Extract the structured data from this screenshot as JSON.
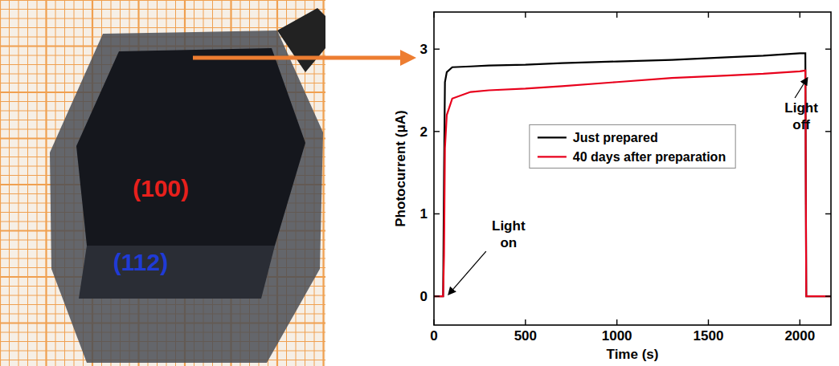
{
  "chart_data": {
    "type": "line",
    "x_label": "Time (s)",
    "y_label": "Photocurrent (μA)",
    "x": [
      0,
      45,
      50,
      55,
      60,
      70,
      100,
      200,
      300,
      500,
      700,
      1000,
      1300,
      1600,
      1800,
      2000,
      2030,
      2035,
      2100,
      2170
    ],
    "series": [
      {
        "name": "Just prepared",
        "color": "#000000",
        "values": [
          0,
          0,
          0,
          1.5,
          2.6,
          2.72,
          2.78,
          2.79,
          2.8,
          2.81,
          2.83,
          2.85,
          2.87,
          2.9,
          2.92,
          2.95,
          2.95,
          0,
          0,
          0
        ]
      },
      {
        "name": "40 days after preparation",
        "color": "#e8001c",
        "values": [
          0,
          0,
          0,
          0.5,
          1.8,
          2.2,
          2.4,
          2.48,
          2.5,
          2.52,
          2.55,
          2.6,
          2.65,
          2.68,
          2.7,
          2.73,
          2.74,
          0,
          0,
          0
        ]
      }
    ],
    "xlim": [
      0,
      2170
    ],
    "xticks": [
      0,
      500,
      1000,
      1500,
      2000
    ],
    "ylim": [
      -0.35,
      3.45
    ],
    "yticks": [
      0,
      1,
      2,
      3
    ],
    "legend": "center",
    "annotations": [
      {
        "text": "Light on",
        "x": 65,
        "y": 0
      },
      {
        "text": "Light off",
        "x": 2030,
        "y": 2.7
      }
    ]
  },
  "photo": {
    "face_labels": [
      {
        "text": "(100)",
        "color": "#e8201c"
      },
      {
        "text": "(112)",
        "color": "#1f3bd6"
      }
    ]
  }
}
